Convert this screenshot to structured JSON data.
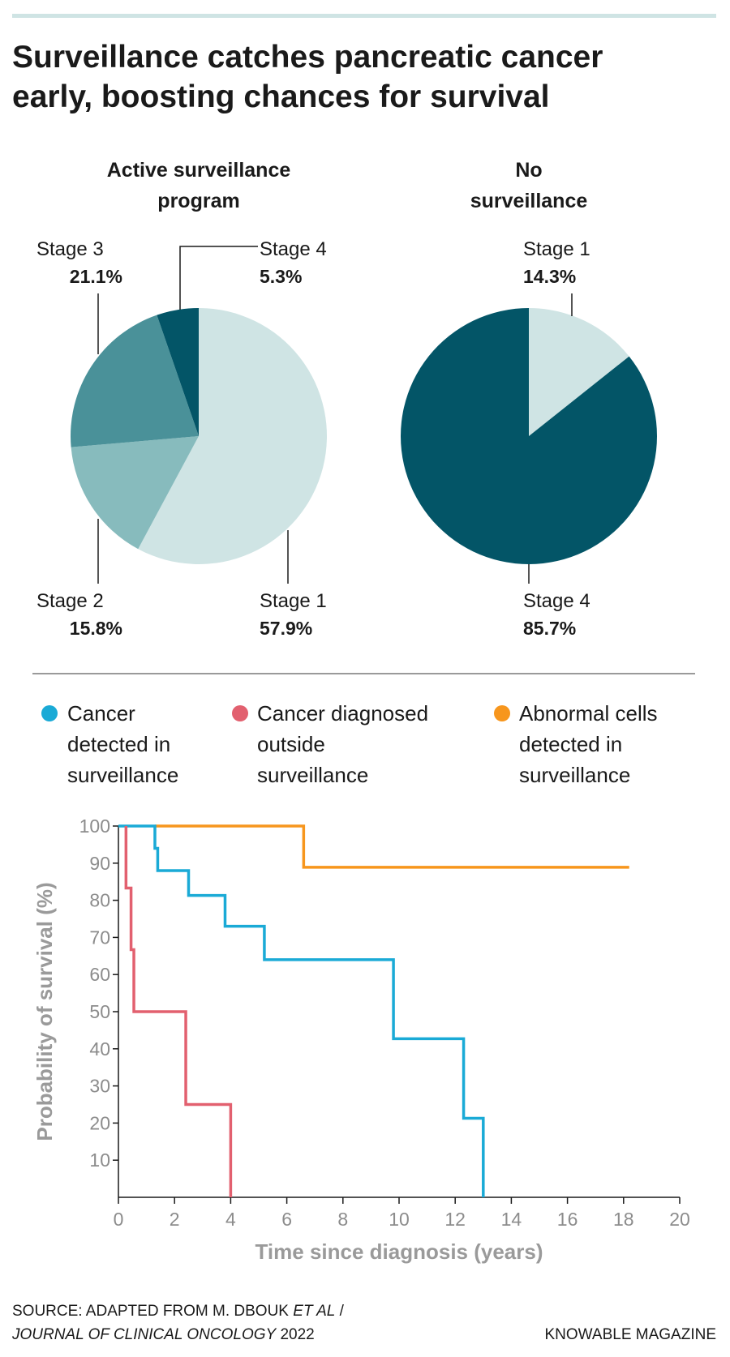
{
  "title_lines": [
    "Surveillance catches pancreatic cancer",
    "early, boosting chances for survival"
  ],
  "chart_data": [
    {
      "type": "pie",
      "title_lines": [
        "Active surveillance",
        "program"
      ],
      "slices": [
        {
          "label": "Stage 1",
          "value": 57.9,
          "display": "57.9%",
          "color": "#cfe4e4"
        },
        {
          "label": "Stage 2",
          "value": 15.8,
          "display": "15.8%",
          "color": "#87bbbd"
        },
        {
          "label": "Stage 3",
          "value": 21.1,
          "display": "21.1%",
          "color": "#4a9199"
        },
        {
          "label": "Stage 4",
          "value": 5.3,
          "display": "5.3%",
          "color": "#035567"
        }
      ]
    },
    {
      "type": "pie",
      "title_lines": [
        "No",
        "surveillance"
      ],
      "slices": [
        {
          "label": "Stage 1",
          "value": 14.3,
          "display": "14.3%",
          "color": "#cfe4e4"
        },
        {
          "label": "Stage 4",
          "value": 85.7,
          "display": "85.7%",
          "color": "#035567"
        }
      ]
    },
    {
      "type": "line",
      "step": true,
      "xlabel": "Time since diagnosis (years)",
      "ylabel": "Probability of survival (%)",
      "xlim": [
        0,
        20
      ],
      "ylim": [
        0,
        100
      ],
      "xticks": [
        "0",
        "2",
        "4",
        "6",
        "8",
        "10",
        "12",
        "14",
        "16",
        "18",
        "20"
      ],
      "yticks": [
        "10",
        "20",
        "30",
        "40",
        "50",
        "60",
        "70",
        "80",
        "90",
        "100"
      ],
      "legend_position": "top",
      "series": [
        {
          "name_lines": [
            "Cancer",
            "detected in",
            "surveillance"
          ],
          "color": "#1aaad6",
          "points": [
            [
              0,
              100
            ],
            [
              1.3,
              100
            ],
            [
              1.3,
              94
            ],
            [
              1.4,
              94
            ],
            [
              1.4,
              88
            ],
            [
              2.5,
              88
            ],
            [
              2.5,
              81.3
            ],
            [
              3.8,
              81.3
            ],
            [
              3.8,
              73
            ],
            [
              5.2,
              73
            ],
            [
              5.2,
              64
            ],
            [
              9.8,
              64
            ],
            [
              9.8,
              42.7
            ],
            [
              12.3,
              42.7
            ],
            [
              12.3,
              21.3
            ],
            [
              13,
              21.3
            ],
            [
              13,
              0
            ]
          ]
        },
        {
          "name_lines": [
            "Cancer diagnosed",
            "outside",
            "surveillance"
          ],
          "color": "#e2606f",
          "points": [
            [
              0.27,
              100
            ],
            [
              0.27,
              83.3
            ],
            [
              0.45,
              83.3
            ],
            [
              0.45,
              66.7
            ],
            [
              0.55,
              66.7
            ],
            [
              0.55,
              50
            ],
            [
              2.4,
              50
            ],
            [
              2.4,
              25
            ],
            [
              4.0,
              25
            ],
            [
              4.0,
              0
            ]
          ]
        },
        {
          "name_lines": [
            "Abnormal cells",
            "detected in",
            "surveillance"
          ],
          "color": "#f7961d",
          "points": [
            [
              1.3,
              100
            ],
            [
              6.6,
              100
            ],
            [
              6.6,
              88.9
            ],
            [
              18.2,
              88.9
            ]
          ]
        }
      ]
    }
  ],
  "footer": {
    "source_line1": "SOURCE: ADAPTED FROM M. DBOUK ",
    "source_etal": "ET AL",
    "source_slash": " /",
    "source_journal": "JOURNAL OF CLINICAL ONCOLOGY",
    "source_year": " 2022",
    "credit": "KNOWABLE MAGAZINE"
  },
  "colors": {
    "rule": "#cfe4e4",
    "divider": "#9a9a9a",
    "axis": "#1a1a1a"
  }
}
